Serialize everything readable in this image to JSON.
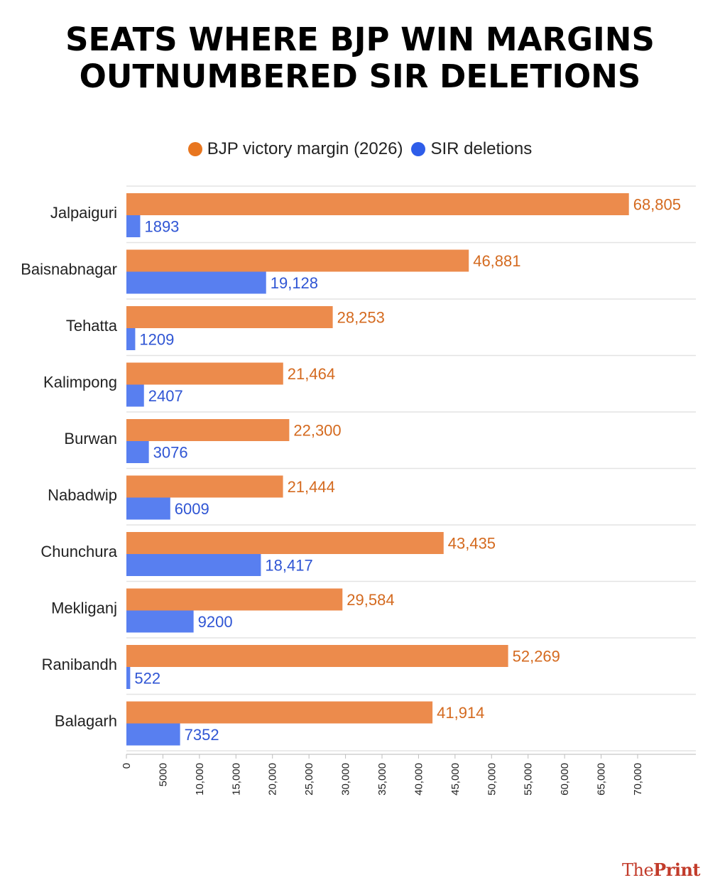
{
  "title_lines": [
    "SEATS WHERE BJP WIN MARGINS",
    "OUTNUMBERED SIR DELETIONS"
  ],
  "logo": {
    "part1": "The",
    "part2": "Print"
  },
  "chart_data": {
    "type": "bar",
    "orientation": "horizontal",
    "title": "SEATS WHERE BJP WIN MARGINS OUTNUMBERED SIR DELETIONS",
    "categories": [
      "Jalpaiguri",
      "Baisnabnagar",
      "Tehatta",
      "Kalimpong",
      "Burwan",
      "Nabadwip",
      "Chunchura",
      "Mekliganj",
      "Ranibandh",
      "Balagarh"
    ],
    "series": [
      {
        "name": "BJP victory margin (2026)",
        "color": "#ec8b4c",
        "label_color": "#d46a1f",
        "values": [
          68805,
          46881,
          28253,
          21464,
          22300,
          21444,
          43435,
          29584,
          52269,
          41914
        ],
        "labels": [
          "68,805",
          "46,881",
          "28,253",
          "21,464",
          "22,300",
          "21,444",
          "43,435",
          "29,584",
          "52,269",
          "41,914"
        ]
      },
      {
        "name": "SIR deletions",
        "color": "#587ff0",
        "label_color": "#2f55d4",
        "values": [
          1893,
          19128,
          1209,
          2407,
          3076,
          6009,
          18417,
          9200,
          522,
          7352
        ],
        "labels": [
          "1893",
          "19,128",
          "1209",
          "2407",
          "3076",
          "6009",
          "18,417",
          "9200",
          "522",
          "7352"
        ]
      }
    ],
    "xlim": [
      0,
      77000
    ],
    "ticks": [
      0,
      5000,
      10000,
      15000,
      20000,
      25000,
      30000,
      35000,
      40000,
      45000,
      50000,
      55000,
      60000,
      65000,
      70000
    ],
    "tick_labels": [
      "0",
      "5000",
      "10,000",
      "15,000",
      "20,000",
      "25,000",
      "30,000",
      "35,000",
      "40,000",
      "45,000",
      "50,000",
      "55,000",
      "60,000",
      "65,000",
      "70,000"
    ],
    "legend_position": "top",
    "grid": "horizontal"
  }
}
